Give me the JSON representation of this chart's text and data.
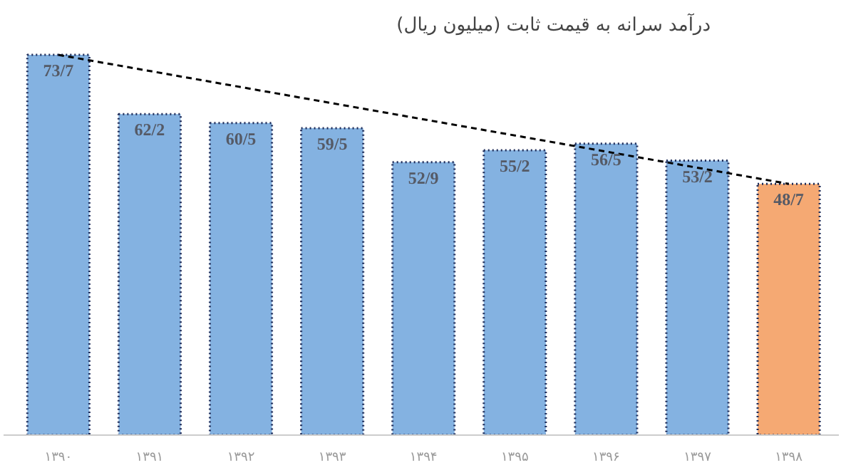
{
  "chart_data": {
    "type": "bar",
    "title": "درآمد سرانه به قیمت ثابت (میلیون ریال)",
    "categories": [
      "۱۳۹۰",
      "۱۳۹۱",
      "۱۳۹۲",
      "۱۳۹۳",
      "۱۳۹۴",
      "۱۳۹۵",
      "۱۳۹۶",
      "۱۳۹۷",
      "۱۳۹۸"
    ],
    "values": [
      73.7,
      62.2,
      60.5,
      59.5,
      52.9,
      55.2,
      56.5,
      53.2,
      48.7
    ],
    "value_labels": [
      "73/7",
      "62/2",
      "60/5",
      "59/5",
      "52/9",
      "55/2",
      "56/5",
      "53/2",
      "48/7"
    ],
    "colors": [
      "#6fa5dc",
      "#6fa5dc",
      "#6fa5dc",
      "#6fa5dc",
      "#6fa5dc",
      "#6fa5dc",
      "#6fa5dc",
      "#6fa5dc",
      "#f39a5a"
    ],
    "series": [
      {
        "type": "line",
        "values": [
          73.7,
          null,
          null,
          null,
          null,
          null,
          null,
          null,
          48.7
        ],
        "color": "#000000",
        "line_style": "dashed"
      }
    ]
  }
}
